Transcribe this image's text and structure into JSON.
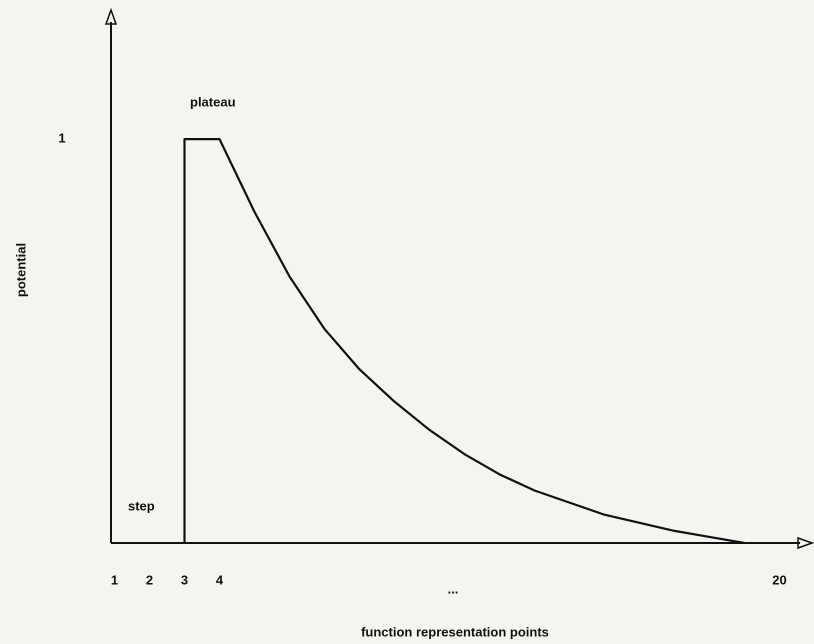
{
  "chart_data": {
    "type": "line",
    "xlabel": "function representation points",
    "ylabel": "potential",
    "annotations": [
      "plateau",
      "step",
      "..."
    ],
    "series": [
      {
        "color": "#111111",
        "x": [
          3,
          3,
          4,
          5,
          6,
          7,
          8,
          9,
          10,
          11,
          12,
          13,
          14,
          15,
          16,
          17,
          18,
          19
        ],
        "values": [
          0,
          1,
          1,
          0.82,
          0.66,
          0.53,
          0.43,
          0.35,
          0.28,
          0.22,
          0.17,
          0.13,
          0.1,
          0.07,
          0.05,
          0.03,
          0.015,
          0
        ]
      }
    ],
    "xlim": [
      0.9,
      20.9
    ],
    "ylim": [
      0,
      1.3
    ],
    "xticks": [
      1,
      2,
      3,
      4,
      20
    ],
    "yticks": [
      1
    ],
    "grid": false
  }
}
